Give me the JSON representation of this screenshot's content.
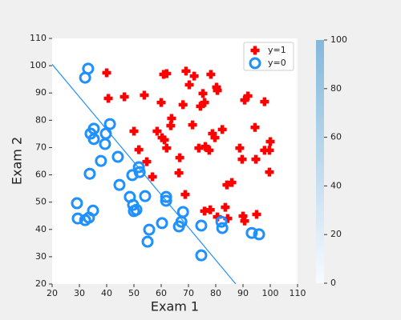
{
  "chart_data": {
    "type": "scatter",
    "x_label": "Exam 1",
    "y_label": "Exam 2",
    "xlim": [
      20,
      110
    ],
    "ylim": [
      20,
      110
    ],
    "xticks": [
      20,
      30,
      40,
      50,
      60,
      70,
      80,
      90,
      100,
      110
    ],
    "yticks": [
      20,
      30,
      40,
      50,
      60,
      70,
      80,
      90,
      100,
      110
    ],
    "legend": "upper right",
    "series": [
      {
        "name": "y=1",
        "color": "#ff0000",
        "marker": "plus",
        "x": [
          40,
          40.6,
          46.5,
          53.8,
          50,
          51.8,
          54.7,
          56.8,
          58.5,
          60,
          60.9,
          62,
          60.3,
          61.2,
          62,
          63.5,
          63.8,
          66.8,
          66.5,
          68,
          69.1,
          70.3,
          68.8,
          72.1,
          71.5,
          73.8,
          74.4,
          75.3,
          75.9,
          76.2,
          77.6,
          78.8,
          78.2,
          80.3,
          80.6,
          79.7,
          82.4,
          75.9,
          78,
          80.6,
          83.5,
          84.4,
          84.1,
          85.9,
          88.8,
          89.7,
          90.6,
          91.8,
          90,
          90.6,
          94.4,
          94.7,
          95,
          97.9,
          97.9,
          99.7,
          100,
          99.7
        ],
        "values": [
          97.4,
          88,
          88.6,
          89.2,
          76,
          69.2,
          64.8,
          59.3,
          76,
          86.5,
          96.8,
          97.1,
          73.6,
          72.8,
          69.8,
          78,
          80.7,
          66.3,
          60.7,
          85.7,
          98,
          93,
          52.8,
          96.2,
          78.3,
          69.8,
          85.1,
          89.8,
          86.5,
          70.4,
          69,
          75.1,
          96.8,
          92.1,
          90.9,
          73.6,
          76.6,
          46.7,
          47.2,
          44.6,
          48.1,
          44,
          56.3,
          57.2,
          69.8,
          65.7,
          87.4,
          88.9,
          44.9,
          43.1,
          77.4,
          65.7,
          45.5,
          86.8,
          69,
          69,
          72.2,
          61
        ]
      },
      {
        "name": "y=0",
        "color": "#1e90ff",
        "marker": "circle",
        "x": [
          32.1,
          33.2,
          35.3,
          34.1,
          35.3,
          39.4,
          39.7,
          41.2,
          44.1,
          37.9,
          33.8,
          44.7,
          29.1,
          29.4,
          32.1,
          33.5,
          35,
          48.5,
          49.4,
          51.8,
          52.1,
          49.7,
          50,
          50.9,
          54.1,
          55.6,
          55,
          60.3,
          61.8,
          61.8,
          66.5,
          67.4,
          68,
          74.7,
          74.7,
          82.1,
          82.4,
          93.2,
          95.9
        ],
        "values": [
          95.6,
          98.9,
          76.9,
          75.1,
          73.1,
          71.3,
          75.1,
          78.6,
          66.6,
          65.1,
          60.4,
          56.3,
          49.6,
          44,
          43.4,
          44.3,
          46.9,
          51.9,
          59.9,
          62.8,
          61,
          49,
          46.7,
          47.2,
          52.2,
          39.9,
          35.5,
          42.3,
          51.9,
          50.5,
          41.1,
          42.8,
          46.4,
          41.4,
          30.5,
          42.8,
          40.5,
          38.7,
          38.2
        ]
      }
    ],
    "boundary": {
      "color": "#1e90ff",
      "x": [
        20,
        87.35
      ],
      "values": [
        100.5,
        20
      ]
    },
    "colorbar": {
      "lim": [
        0,
        100
      ],
      "ticks": [
        0,
        20,
        40,
        60,
        80,
        100
      ],
      "colors": [
        "#f7fbff",
        "#82b8da"
      ]
    }
  }
}
